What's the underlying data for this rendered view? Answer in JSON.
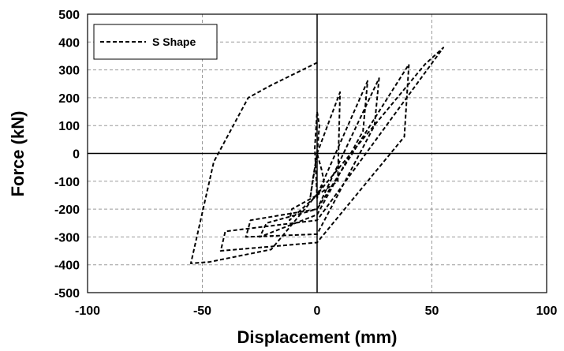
{
  "chart_data": {
    "type": "line",
    "xlabel": "Displacement (mm)",
    "ylabel": "Force (kN)",
    "xlim": [
      -100,
      100
    ],
    "ylim": [
      -500,
      500
    ],
    "xticks": [
      -100,
      -50,
      0,
      50,
      100
    ],
    "yticks": [
      -500,
      -400,
      -300,
      -200,
      -100,
      0,
      100,
      200,
      300,
      400,
      500
    ],
    "grid": true,
    "grid_style": "dashed",
    "legend_position": "top-left",
    "series": [
      {
        "name": "S Shape",
        "color": "#000000",
        "line_style": "dashed",
        "x": [
          0,
          1,
          0,
          -1,
          0,
          3,
          2,
          0,
          -3,
          -2,
          0,
          10,
          9,
          0,
          -12,
          -11,
          0,
          22,
          20,
          0,
          -25,
          -22,
          0,
          27,
          25,
          0,
          -31,
          -29,
          0,
          40,
          38,
          0,
          -42,
          -40,
          0,
          55,
          47,
          -20,
          -47,
          -55,
          -45,
          -30,
          -20,
          1
        ],
        "y": [
          0,
          100,
          150,
          20,
          -160,
          -100,
          -60,
          0,
          -160,
          -100,
          0,
          220,
          -100,
          -150,
          -240,
          -200,
          -150,
          260,
          80,
          -220,
          -300,
          -250,
          -200,
          270,
          100,
          -290,
          -300,
          -240,
          -200,
          320,
          60,
          -320,
          -350,
          -280,
          -240,
          380,
          320,
          -345,
          -390,
          -395,
          -30,
          200,
          245,
          330
        ]
      }
    ]
  }
}
